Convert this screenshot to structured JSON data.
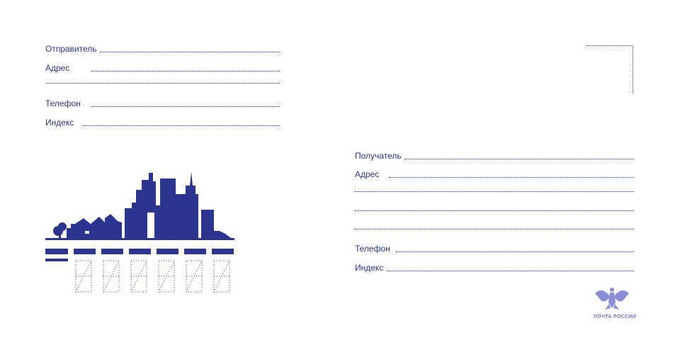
{
  "sender": {
    "name_label": "Отправитель",
    "address_label": "Адрес",
    "phone_label": "Телефон",
    "index_label": "Индекс"
  },
  "recipient": {
    "name_label": "Получатель",
    "address_label": "Адрес",
    "phone_label": "Телефон",
    "index_label": "Индекс"
  },
  "logo": {
    "text": "ПОЧТА РОССИИ",
    "color": "#6b6fc4"
  },
  "colors": {
    "primary": "#2b3590"
  }
}
